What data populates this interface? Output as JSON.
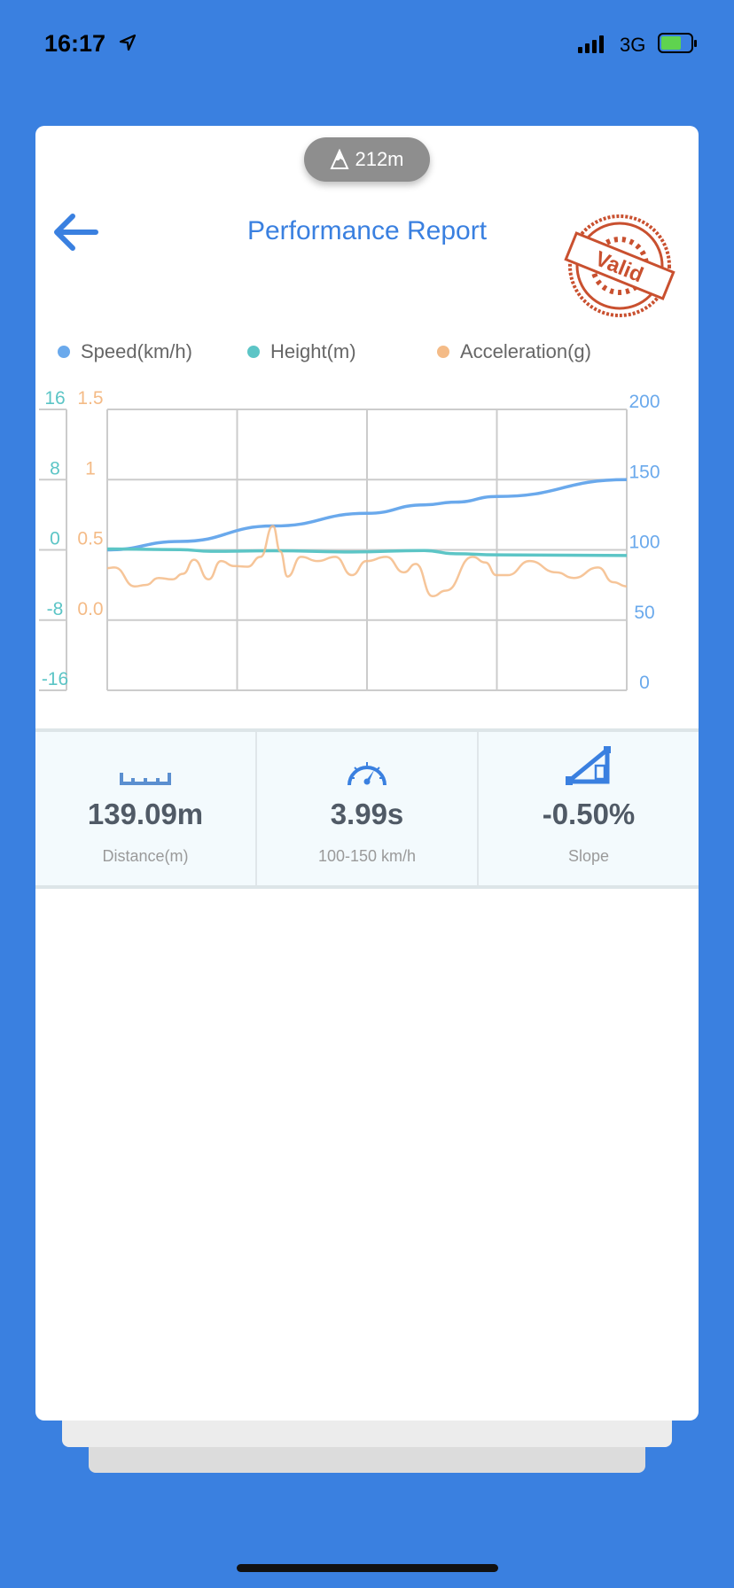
{
  "status_bar": {
    "time": "16:17",
    "network": "3G"
  },
  "header": {
    "altitude": "212m",
    "title": "Performance Report",
    "stamp_text": "Valid"
  },
  "legend": [
    {
      "label": "Speed(km/h)",
      "color": "#6aa9ec"
    },
    {
      "label": "Height(m)",
      "color": "#5cc5c6"
    },
    {
      "label": "Acceleration(g)",
      "color": "#f4bb87"
    }
  ],
  "chart_data": {
    "type": "line",
    "x_unit": "percent of run",
    "axes": {
      "height": {
        "ticks": [
          "16",
          "8",
          "0",
          "-8",
          "-16"
        ],
        "range": [
          -16,
          16
        ],
        "color": "#5cc5c6"
      },
      "acceleration": {
        "ticks": [
          "1.5",
          "1",
          "0.5",
          "0.0"
        ],
        "range": [
          -0.5,
          1.5
        ],
        "color": "#f4bb87"
      },
      "speed": {
        "ticks": [
          "200",
          "150",
          "100",
          "50",
          "0"
        ],
        "range": [
          0,
          200
        ],
        "color": "#6aa9ec"
      }
    },
    "series": [
      {
        "name": "Speed(km/h)",
        "axis": "speed",
        "color": "#6aa9ec",
        "x": [
          0,
          14,
          32,
          50,
          61,
          67,
          75,
          100
        ],
        "y": [
          100,
          106,
          117,
          126,
          132,
          134,
          138,
          150
        ]
      },
      {
        "name": "Height(m)",
        "axis": "height",
        "color": "#5cc5c6",
        "x": [
          0,
          14,
          20,
          32,
          47,
          61,
          67,
          75,
          100
        ],
        "y": [
          0.1,
          0.03,
          -0.17,
          -0.1,
          -0.24,
          -0.07,
          -0.44,
          -0.57,
          -0.64
        ]
      },
      {
        "name": "Acceleration(g)",
        "axis": "acceleration",
        "color": "#f4bb87",
        "x": [
          0,
          1.4,
          5.3,
          7.4,
          9.9,
          12.5,
          14.6,
          16.7,
          19.5,
          21.9,
          24.4,
          27,
          29.5,
          31.9,
          33.3,
          34.7,
          37.3,
          40.5,
          43.9,
          47.1,
          49.9,
          53.7,
          57.1,
          59.4,
          62.6,
          65.2,
          70.3,
          72.8,
          74.9,
          77.1,
          81.3,
          86.4,
          89.8,
          94.5,
          97.4,
          100
        ],
        "y": [
          0.37,
          0.375,
          0.24,
          0.25,
          0.3,
          0.29,
          0.33,
          0.43,
          0.29,
          0.42,
          0.385,
          0.38,
          0.45,
          0.67,
          0.49,
          0.31,
          0.45,
          0.42,
          0.45,
          0.32,
          0.42,
          0.45,
          0.34,
          0.4,
          0.17,
          0.21,
          0.45,
          0.41,
          0.32,
          0.32,
          0.42,
          0.34,
          0.3,
          0.375,
          0.27,
          0.24
        ]
      }
    ]
  },
  "stats": [
    {
      "icon": "ruler-icon",
      "value": "139.09m",
      "label": "Distance(m)"
    },
    {
      "icon": "speedometer-icon",
      "value": "3.99s",
      "label": "100-150 km/h"
    },
    {
      "icon": "slope-icon",
      "value": "-0.50%",
      "label": "Slope"
    }
  ]
}
